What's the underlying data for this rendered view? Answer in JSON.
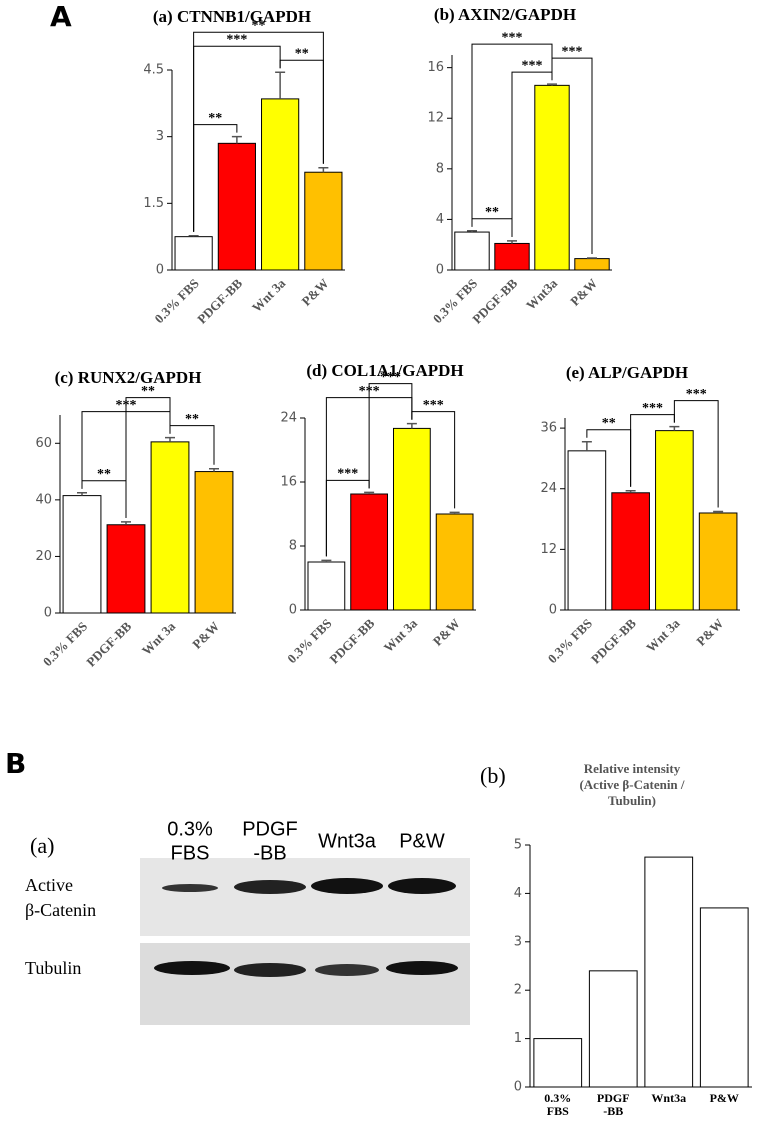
{
  "panel_labels": {
    "A": "A",
    "B": "B",
    "Ba": "(a)",
    "Bb": "(b)"
  },
  "blot": {
    "lanes": [
      [
        "0.3%",
        "FBS"
      ],
      [
        "PDGF",
        "-BB"
      ],
      [
        "Wnt3a"
      ],
      [
        "P&W"
      ]
    ],
    "rows": [
      [
        "Active",
        "β-Catenin"
      ],
      [
        "Tubulin"
      ]
    ]
  },
  "chart_data": [
    {
      "type": "bar",
      "title": "(a) CTNNB1/GAPDH",
      "categories": [
        "0.3% FBS",
        "PDGF-BB",
        "Wnt 3a",
        "P&W"
      ],
      "values": [
        0.75,
        2.85,
        3.85,
        2.2
      ],
      "errors": [
        0.02,
        0.15,
        0.6,
        0.1
      ],
      "colors": [
        "#ffffff",
        "#ff0000",
        "#ffff00",
        "#ffc000"
      ],
      "ylim": [
        0,
        4.5
      ],
      "yticks": [
        0,
        1.5,
        3,
        4.5
      ],
      "significance": [
        {
          "from": "0.3% FBS",
          "to": "PDGF-BB",
          "label": "**"
        },
        {
          "from": "Wnt 3a",
          "to": "P&W",
          "label": "**"
        },
        {
          "from": "0.3% FBS",
          "to": "Wnt 3a",
          "label": "***"
        },
        {
          "from": "0.3% FBS",
          "to": "P&W",
          "label": "**"
        }
      ]
    },
    {
      "type": "bar",
      "title": "(b) AXIN2/GAPDH",
      "categories": [
        "0.3% FBS",
        "PDGF-BB",
        "Wnt3a",
        "P&W"
      ],
      "values": [
        3.0,
        2.1,
        14.6,
        0.9
      ],
      "errors": [
        0.1,
        0.2,
        0.1,
        0.05
      ],
      "colors": [
        "#ffffff",
        "#ff0000",
        "#ffff00",
        "#ffc000"
      ],
      "ylim": [
        0,
        17
      ],
      "yticks": [
        0,
        4,
        8,
        12,
        16
      ],
      "significance": [
        {
          "from": "0.3% FBS",
          "to": "PDGF-BB",
          "label": "**"
        },
        {
          "from": "PDGF-BB",
          "to": "Wnt3a",
          "label": "***"
        },
        {
          "from": "Wnt3a",
          "to": "P&W",
          "label": "***"
        },
        {
          "from": "0.3% FBS",
          "to": "Wnt3a",
          "label": "***"
        }
      ]
    },
    {
      "type": "bar",
      "title": "(c) RUNX2/GAPDH",
      "categories": [
        "0.3% FBS",
        "PDGF-BB",
        "Wnt 3a",
        "P&W"
      ],
      "values": [
        41.5,
        31.2,
        60.5,
        50
      ],
      "errors": [
        1,
        1,
        1.5,
        1
      ],
      "colors": [
        "#ffffff",
        "#ff0000",
        "#ffff00",
        "#ffc000"
      ],
      "ylim": [
        0,
        70
      ],
      "yticks": [
        0,
        20,
        40,
        60
      ],
      "significance": [
        {
          "from": "0.3% FBS",
          "to": "PDGF-BB",
          "label": "**"
        },
        {
          "from": "Wnt 3a",
          "to": "P&W",
          "label": "**"
        },
        {
          "from": "0.3% FBS",
          "to": "Wnt 3a",
          "label": "***"
        },
        {
          "from": "PDGF-BB",
          "to": "Wnt 3a",
          "label": "**"
        }
      ]
    },
    {
      "type": "bar",
      "title": "(d) COL1A1/GAPDH",
      "categories": [
        "0.3% FBS",
        "PDGF-BB",
        "Wnt 3a",
        "P&W"
      ],
      "values": [
        6,
        14.5,
        22.7,
        12
      ],
      "errors": [
        0.2,
        0.2,
        0.6,
        0.2
      ],
      "colors": [
        "#ffffff",
        "#ff0000",
        "#ffff00",
        "#ffc000"
      ],
      "ylim": [
        0,
        24
      ],
      "yticks": [
        0,
        8,
        16,
        24
      ],
      "significance": [
        {
          "from": "0.3% FBS",
          "to": "PDGF-BB",
          "label": "***"
        },
        {
          "from": "Wnt 3a",
          "to": "P&W",
          "label": "***"
        },
        {
          "from": "0.3% FBS",
          "to": "Wnt 3a",
          "label": "***"
        },
        {
          "from": "PDGF-BB",
          "to": "Wnt 3a",
          "label": "***"
        }
      ]
    },
    {
      "type": "bar",
      "title": "(e) ALP/GAPDH",
      "categories": [
        "0.3% FBS",
        "PDGF-BB",
        "Wnt 3a",
        "P&W"
      ],
      "values": [
        31.5,
        23.2,
        35.5,
        19.2
      ],
      "errors": [
        1.8,
        0.4,
        0.8,
        0.3
      ],
      "colors": [
        "#ffffff",
        "#ff0000",
        "#ffff00",
        "#ffc000"
      ],
      "ylim": [
        0,
        38
      ],
      "yticks": [
        0,
        12,
        24,
        36
      ],
      "significance": [
        {
          "from": "0.3% FBS",
          "to": "PDGF-BB",
          "label": "**"
        },
        {
          "from": "PDGF-BB",
          "to": "Wnt 3a",
          "label": "***"
        },
        {
          "from": "Wnt 3a",
          "to": "P&W",
          "label": "***"
        }
      ]
    },
    {
      "type": "bar",
      "title": [
        "Relative intensity",
        "(Active β-Catenin /",
        "Tubulin)"
      ],
      "categories": [
        [
          "0.3%",
          "FBS"
        ],
        [
          "PDGF",
          "-BB"
        ],
        [
          "Wnt3a"
        ],
        [
          "P&W"
        ]
      ],
      "values": [
        1,
        2.4,
        4.75,
        3.7
      ],
      "colors": [
        "#ffffff",
        "#ffffff",
        "#ffffff",
        "#ffffff"
      ],
      "ylim": [
        0,
        5
      ],
      "yticks": [
        0,
        1,
        2,
        3,
        4,
        5
      ]
    }
  ]
}
